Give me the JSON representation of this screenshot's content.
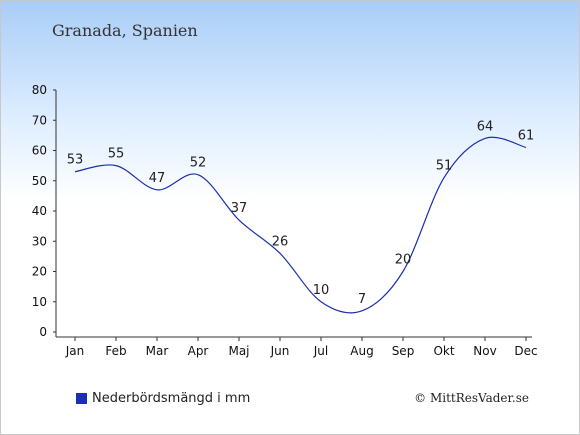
{
  "chart_data": {
    "type": "line",
    "title": "Granada, Spanien",
    "categories": [
      "Jan",
      "Feb",
      "Mar",
      "Apr",
      "Maj",
      "Jun",
      "Jul",
      "Aug",
      "Sep",
      "Okt",
      "Nov",
      "Dec"
    ],
    "series": [
      {
        "name": "Nederbördsmängd i mm",
        "values": [
          53,
          55,
          47,
          52,
          37,
          26,
          10,
          7,
          20,
          51,
          64,
          61
        ],
        "color": "#1c2fae"
      }
    ],
    "y_ticks": [
      0,
      10,
      20,
      30,
      40,
      50,
      60,
      70,
      80
    ],
    "ylim": [
      0,
      80
    ],
    "grid": false,
    "legend_position": "bottom-left"
  },
  "copyright": "© MittResVader.se"
}
